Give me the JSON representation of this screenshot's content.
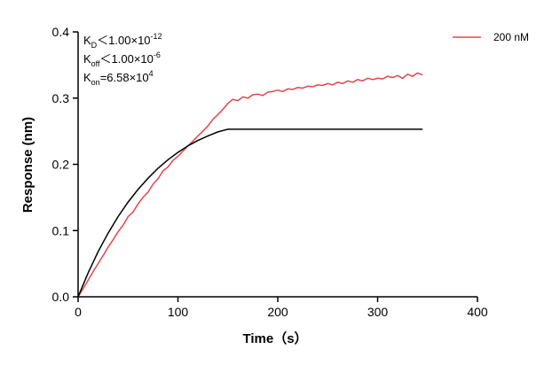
{
  "chart_data": {
    "type": "line",
    "xlabel": "Time（s）",
    "ylabel": "Response (nm)",
    "xlim": [
      0,
      400
    ],
    "xticks": [
      0,
      100,
      200,
      300,
      400
    ],
    "ylim": [
      0,
      0.4
    ],
    "yticks": [
      {
        "value": 0,
        "label": "0.0"
      },
      0.1,
      0.2,
      0.3,
      0.4
    ],
    "grid": false,
    "legend": "top-right",
    "annotations": [
      {
        "base": "K",
        "sub": "D",
        "text": "＜1.00×10",
        "sup": "-12"
      },
      {
        "base": "K",
        "sub": "off",
        "text": "＜1.00×10",
        "sup": "-6"
      },
      {
        "base": "K",
        "sub": "on",
        "text": "=6.58×10",
        "sup": "4"
      }
    ],
    "series": [
      {
        "name": "200 nM",
        "color": "#e0474c",
        "x": [
          0,
          5,
          10,
          15,
          20,
          25,
          30,
          35,
          40,
          45,
          50,
          55,
          60,
          65,
          70,
          75,
          80,
          85,
          90,
          95,
          100,
          105,
          110,
          115,
          120,
          125,
          130,
          135,
          140,
          145,
          150,
          155,
          160,
          165,
          170,
          175,
          180,
          185,
          190,
          195,
          200,
          205,
          210,
          215,
          220,
          225,
          230,
          235,
          240,
          245,
          250,
          255,
          260,
          265,
          270,
          275,
          280,
          285,
          290,
          295,
          300,
          305,
          310,
          315,
          320,
          325,
          330,
          335,
          340,
          345
        ],
        "values": [
          0.0,
          0.012,
          0.025,
          0.038,
          0.05,
          0.062,
          0.075,
          0.086,
          0.098,
          0.108,
          0.121,
          0.128,
          0.14,
          0.15,
          0.158,
          0.17,
          0.178,
          0.19,
          0.196,
          0.206,
          0.212,
          0.22,
          0.228,
          0.235,
          0.243,
          0.25,
          0.258,
          0.268,
          0.275,
          0.283,
          0.292,
          0.298,
          0.296,
          0.302,
          0.3,
          0.305,
          0.306,
          0.304,
          0.309,
          0.31,
          0.312,
          0.31,
          0.314,
          0.313,
          0.316,
          0.315,
          0.318,
          0.317,
          0.32,
          0.319,
          0.322,
          0.32,
          0.324,
          0.322,
          0.326,
          0.324,
          0.328,
          0.326,
          0.33,
          0.328,
          0.33,
          0.329,
          0.333,
          0.331,
          0.334,
          0.33,
          0.336,
          0.333,
          0.338,
          0.335
        ]
      },
      {
        "color": "#000000",
        "x": [
          0,
          10,
          20,
          30,
          40,
          50,
          60,
          70,
          80,
          90,
          100,
          110,
          120,
          130,
          140,
          150,
          345
        ],
        "values": [
          0,
          0.036,
          0.068,
          0.096,
          0.121,
          0.143,
          0.162,
          0.179,
          0.194,
          0.207,
          0.218,
          0.228,
          0.236,
          0.243,
          0.249,
          0.253,
          0.253
        ]
      }
    ]
  }
}
